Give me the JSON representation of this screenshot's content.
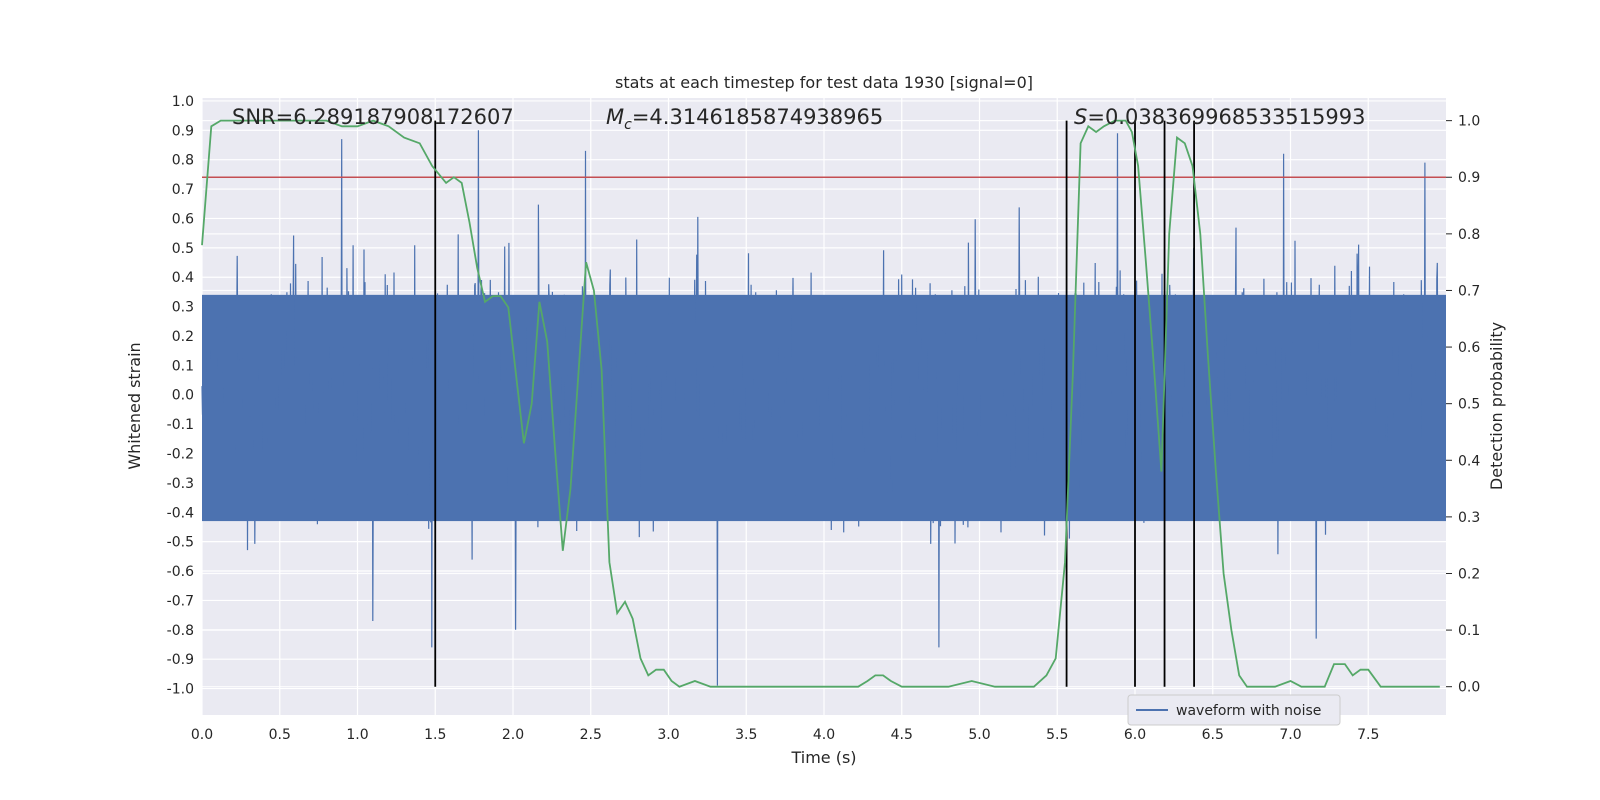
{
  "chart_data": {
    "type": "line",
    "title": "stats at each timestep for test data 1930 [signal=0]",
    "xlabel": "Time (s)",
    "ylabel_left": "Whitened strain",
    "ylabel_right": "Detection probability",
    "xlim": [
      0.0,
      8.0
    ],
    "ylim_left": [
      -1.09,
      1.01
    ],
    "ylim_right": [
      -0.05,
      1.04
    ],
    "x_ticks": [
      "0.0",
      "0.5",
      "1.0",
      "1.5",
      "2.0",
      "2.5",
      "3.0",
      "3.5",
      "4.0",
      "4.5",
      "5.0",
      "5.5",
      "6.0",
      "6.5",
      "7.0",
      "7.5"
    ],
    "y_left_ticks": [
      "1.0",
      "0.9",
      "0.8",
      "0.7",
      "0.6",
      "0.5",
      "0.4",
      "0.3",
      "0.2",
      "0.1",
      "0.0",
      "-0.1",
      "-0.2",
      "-0.3",
      "-0.4",
      "-0.5",
      "-0.6",
      "-0.7",
      "-0.8",
      "-0.9",
      "-1.0"
    ],
    "y_right_ticks": [
      "0.0",
      "0.1",
      "0.2",
      "0.3",
      "0.4",
      "0.5",
      "0.6",
      "0.7",
      "0.8",
      "0.9",
      "1.0"
    ],
    "annotations": {
      "snr": "SNR=6.289187908172607",
      "mc_symbol": "M",
      "mc_sub": "c",
      "mc_value": "=4.3146185874938965",
      "s_symbol": "S",
      "s_value": "=0.038369968533515993"
    },
    "legend": {
      "label": "waveform with noise",
      "position": "lower-right"
    },
    "threshold": {
      "value": 0.9,
      "color": "#c44e52"
    },
    "event_lines": [
      1.5,
      5.56,
      6.0,
      6.19,
      6.38
    ],
    "event_line_range": [
      0.0,
      1.0
    ],
    "waveform": {
      "name": "waveform with noise",
      "color": "#4c72b0",
      "samples": 2400,
      "seed": 1930,
      "noise_sigma": 0.2,
      "bulk_band": [
        -0.43,
        0.34
      ],
      "peaks": [
        [
          0.9,
          0.87
        ],
        [
          1.78,
          0.9
        ],
        [
          2.47,
          0.83
        ],
        [
          3.32,
          -0.99
        ],
        [
          1.48,
          -0.86
        ],
        [
          1.1,
          -0.77
        ],
        [
          2.02,
          -0.8
        ],
        [
          4.75,
          -0.86
        ],
        [
          7.18,
          -0.83
        ],
        [
          7.88,
          0.79
        ],
        [
          5.9,
          0.89
        ],
        [
          6.97,
          0.82
        ]
      ]
    },
    "probability": {
      "name": "detection probability",
      "color": "#55a868",
      "x": [
        0.0,
        0.06,
        0.12,
        0.2,
        0.3,
        0.4,
        0.5,
        0.6,
        0.7,
        0.8,
        0.9,
        1.0,
        1.1,
        1.2,
        1.3,
        1.4,
        1.48,
        1.57,
        1.62,
        1.67,
        1.72,
        1.77,
        1.82,
        1.87,
        1.92,
        1.97,
        2.02,
        2.07,
        2.12,
        2.17,
        2.22,
        2.27,
        2.32,
        2.37,
        2.42,
        2.47,
        2.52,
        2.57,
        2.62,
        2.67,
        2.72,
        2.77,
        2.82,
        2.87,
        2.92,
        2.97,
        3.02,
        3.07,
        3.17,
        3.27,
        3.37,
        3.5,
        3.7,
        3.9,
        4.1,
        4.22,
        4.28,
        4.33,
        4.38,
        4.43,
        4.5,
        4.6,
        4.8,
        4.95,
        5.1,
        5.25,
        5.35,
        5.43,
        5.49,
        5.55,
        5.6,
        5.65,
        5.7,
        5.75,
        5.8,
        5.87,
        5.94,
        5.98,
        6.02,
        6.07,
        6.12,
        6.17,
        6.22,
        6.27,
        6.32,
        6.37,
        6.42,
        6.47,
        6.52,
        6.57,
        6.62,
        6.67,
        6.72,
        6.77,
        6.82,
        6.9,
        7.0,
        7.07,
        7.15,
        7.22,
        7.28,
        7.35,
        7.4,
        7.45,
        7.5,
        7.58,
        7.7,
        7.85,
        7.96
      ],
      "y": [
        0.78,
        0.99,
        1.0,
        1.0,
        1.0,
        1.0,
        1.0,
        1.0,
        1.0,
        1.0,
        0.99,
        0.99,
        1.0,
        0.99,
        0.97,
        0.96,
        0.92,
        0.89,
        0.9,
        0.89,
        0.82,
        0.74,
        0.68,
        0.69,
        0.69,
        0.67,
        0.55,
        0.43,
        0.5,
        0.68,
        0.61,
        0.42,
        0.24,
        0.35,
        0.55,
        0.75,
        0.7,
        0.56,
        0.22,
        0.13,
        0.15,
        0.12,
        0.05,
        0.02,
        0.03,
        0.03,
        0.01,
        0.0,
        0.01,
        0.0,
        0.0,
        0.0,
        0.0,
        0.0,
        0.0,
        0.0,
        0.01,
        0.02,
        0.02,
        0.01,
        0.0,
        0.0,
        0.0,
        0.01,
        0.0,
        0.0,
        0.0,
        0.02,
        0.05,
        0.22,
        0.55,
        0.96,
        0.99,
        0.98,
        0.99,
        1.0,
        1.0,
        0.98,
        0.92,
        0.75,
        0.57,
        0.38,
        0.8,
        0.97,
        0.96,
        0.92,
        0.8,
        0.58,
        0.38,
        0.2,
        0.1,
        0.02,
        0.0,
        0.0,
        0.0,
        0.0,
        0.01,
        0.0,
        0.0,
        0.0,
        0.04,
        0.04,
        0.02,
        0.03,
        0.03,
        0.0,
        0.0,
        0.0,
        0.0
      ]
    }
  }
}
